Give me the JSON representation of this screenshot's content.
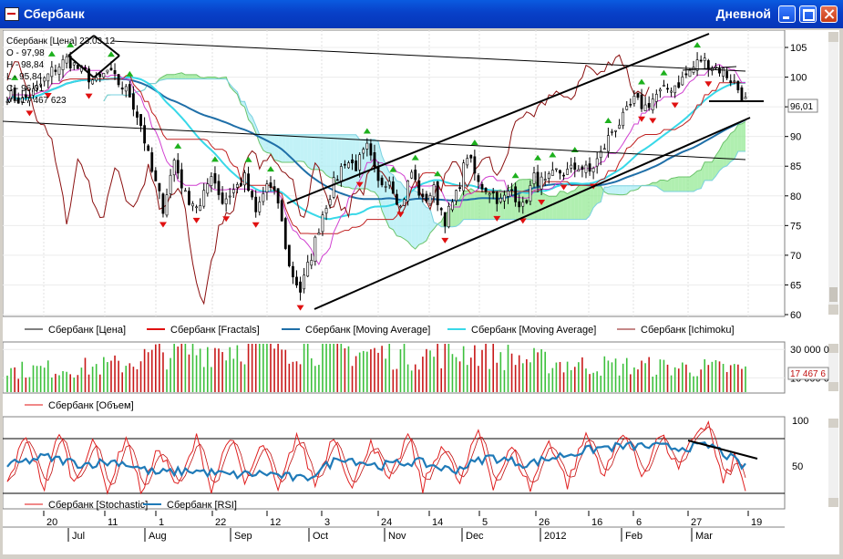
{
  "window": {
    "title": "Сбербанк",
    "interval": "Дневной"
  },
  "info_box": {
    "header": "Сбербанк [Цена] 23.03.12",
    "rows": [
      "O - 97,98",
      "H - 98,84",
      "L - 95,84",
      "C - 96,01",
      "V - 17 467 623"
    ]
  },
  "last_price_label": "96,01",
  "last_volume_label": "17 467 6",
  "colors": {
    "price": "#000000",
    "fractal_up": "#1db01d",
    "fractal_down": "#e01010",
    "ma_long": "#1f6fa8",
    "ma_short": "#38d8e8",
    "ichimoku": "#8b1010",
    "kumo_up": "#8ee88e",
    "kumo_down": "#a8ecf4",
    "kijun": "#c02020",
    "tenkan": "#d040d0",
    "stochastic": "#e02020",
    "rsi": "#1f7ab8"
  },
  "legends": {
    "price_panel": [
      "Сбербанк [Цена]",
      "Сбербанк [Fractals]",
      "Сбербанк [Moving Average]",
      "Сбербанк [Moving Average]",
      "Сбербанк [Ichimoku]"
    ],
    "volume_panel": [
      "Сбербанк [Объем]"
    ],
    "oscillator_panel": [
      "Сбербанк [Stochastic]",
      "Сбербанк [RSI]"
    ]
  },
  "chart_data": [
    {
      "type": "candlestick",
      "title": "Сбербанк [Цена]",
      "ylim": [
        60,
        107
      ],
      "y_ticks": [
        "105",
        "100",
        "95",
        "90",
        "85",
        "80",
        "75",
        "70",
        "65",
        "60"
      ],
      "x_day_labels": [
        "20",
        "11",
        "1",
        "22",
        "12",
        "3",
        "24",
        "14",
        "5",
        "26",
        "16",
        "6",
        "27",
        "19"
      ],
      "x_month_labels": [
        "Jul",
        "Aug",
        "Sep",
        "Oct",
        "Nov",
        "Dec",
        "2012",
        "Feb",
        "Mar"
      ],
      "close_anchors": [
        [
          0,
          97
        ],
        [
          4,
          96
        ],
        [
          8,
          98
        ],
        [
          12,
          101
        ],
        [
          16,
          103
        ],
        [
          20,
          101
        ],
        [
          24,
          99
        ],
        [
          27,
          101
        ],
        [
          30,
          99
        ],
        [
          33,
          97
        ],
        [
          36,
          92
        ],
        [
          39,
          84
        ],
        [
          42,
          78
        ],
        [
          45,
          86
        ],
        [
          48,
          80
        ],
        [
          52,
          78
        ],
        [
          55,
          84
        ],
        [
          58,
          79
        ],
        [
          61,
          81
        ],
        [
          64,
          83
        ],
        [
          67,
          77
        ],
        [
          70,
          82
        ],
        [
          73,
          79
        ],
        [
          76,
          68
        ],
        [
          79,
          64
        ],
        [
          82,
          70
        ],
        [
          85,
          77
        ],
        [
          88,
          82
        ],
        [
          91,
          86
        ],
        [
          94,
          85
        ],
        [
          97,
          88
        ],
        [
          100,
          82
        ],
        [
          103,
          83
        ],
        [
          106,
          78
        ],
        [
          109,
          84
        ],
        [
          112,
          79
        ],
        [
          115,
          81
        ],
        [
          118,
          76
        ],
        [
          121,
          80
        ],
        [
          124,
          87
        ],
        [
          127,
          82
        ],
        [
          130,
          81
        ],
        [
          133,
          79
        ],
        [
          136,
          81
        ],
        [
          139,
          78
        ],
        [
          142,
          83
        ],
        [
          145,
          82
        ],
        [
          148,
          84
        ],
        [
          151,
          84
        ],
        [
          154,
          85
        ],
        [
          157,
          84
        ],
        [
          160,
          87
        ],
        [
          163,
          91
        ],
        [
          166,
          93
        ],
        [
          169,
          96
        ],
        [
          172,
          95
        ],
        [
          175,
          97
        ],
        [
          178,
          98
        ],
        [
          181,
          99
        ],
        [
          184,
          101
        ],
        [
          187,
          103
        ],
        [
          190,
          102
        ],
        [
          193,
          101
        ],
        [
          196,
          99
        ],
        [
          199,
          96
        ]
      ],
      "annotations": "trend channel lines, resistance and support lines"
    },
    {
      "type": "bar",
      "title": "Сбербанк [Объем]",
      "y_ticks": [
        "30 000 0",
        "10 000 0"
      ],
      "values_millions_anchors": [
        [
          0,
          16
        ],
        [
          20,
          18
        ],
        [
          30,
          20
        ],
        [
          40,
          28
        ],
        [
          55,
          32
        ],
        [
          70,
          36
        ],
        [
          80,
          34
        ],
        [
          95,
          30
        ],
        [
          110,
          27
        ],
        [
          125,
          31
        ],
        [
          140,
          24
        ],
        [
          155,
          20
        ],
        [
          170,
          19
        ],
        [
          185,
          18
        ],
        [
          199,
          17
        ]
      ]
    },
    {
      "type": "line",
      "title": "Stochastic / RSI",
      "ylim": [
        20,
        100
      ],
      "y_ticks": [
        "100",
        "50"
      ],
      "levels": [
        80,
        20
      ],
      "series": [
        {
          "name": "Сбербанк [Stochastic]",
          "anchors": [
            [
              0,
              30
            ],
            [
              5,
              85
            ],
            [
              10,
              25
            ],
            [
              14,
              90
            ],
            [
              18,
              30
            ],
            [
              23,
              80
            ],
            [
              27,
              20
            ],
            [
              32,
              85
            ],
            [
              36,
              20
            ],
            [
              41,
              70
            ],
            [
              46,
              25
            ],
            [
              51,
              80
            ],
            [
              55,
              25
            ],
            [
              60,
              85
            ],
            [
              64,
              30
            ],
            [
              69,
              75
            ],
            [
              73,
              20
            ],
            [
              78,
              85
            ],
            [
              83,
              30
            ],
            [
              88,
              85
            ],
            [
              93,
              25
            ],
            [
              98,
              80
            ],
            [
              103,
              30
            ],
            [
              108,
              85
            ],
            [
              112,
              25
            ],
            [
              117,
              75
            ],
            [
              122,
              30
            ],
            [
              127,
              90
            ],
            [
              131,
              30
            ],
            [
              136,
              70
            ],
            [
              141,
              25
            ],
            [
              146,
              80
            ],
            [
              151,
              30
            ],
            [
              156,
              85
            ],
            [
              161,
              40
            ],
            [
              166,
              90
            ],
            [
              171,
              40
            ],
            [
              176,
              85
            ],
            [
              181,
              45
            ],
            [
              186,
              90
            ],
            [
              189,
              95
            ],
            [
              193,
              30
            ],
            [
              196,
              60
            ],
            [
              199,
              25
            ]
          ]
        },
        {
          "name": "Сбербанк [RSI]",
          "anchors": [
            [
              0,
              50
            ],
            [
              10,
              60
            ],
            [
              20,
              52
            ],
            [
              30,
              55
            ],
            [
              40,
              42
            ],
            [
              50,
              45
            ],
            [
              60,
              40
            ],
            [
              70,
              42
            ],
            [
              80,
              35
            ],
            [
              90,
              60
            ],
            [
              100,
              50
            ],
            [
              110,
              55
            ],
            [
              120,
              45
            ],
            [
              130,
              60
            ],
            [
              140,
              52
            ],
            [
              150,
              62
            ],
            [
              160,
              70
            ],
            [
              170,
              72
            ],
            [
              180,
              70
            ],
            [
              190,
              72
            ],
            [
              199,
              48
            ]
          ]
        }
      ]
    }
  ]
}
